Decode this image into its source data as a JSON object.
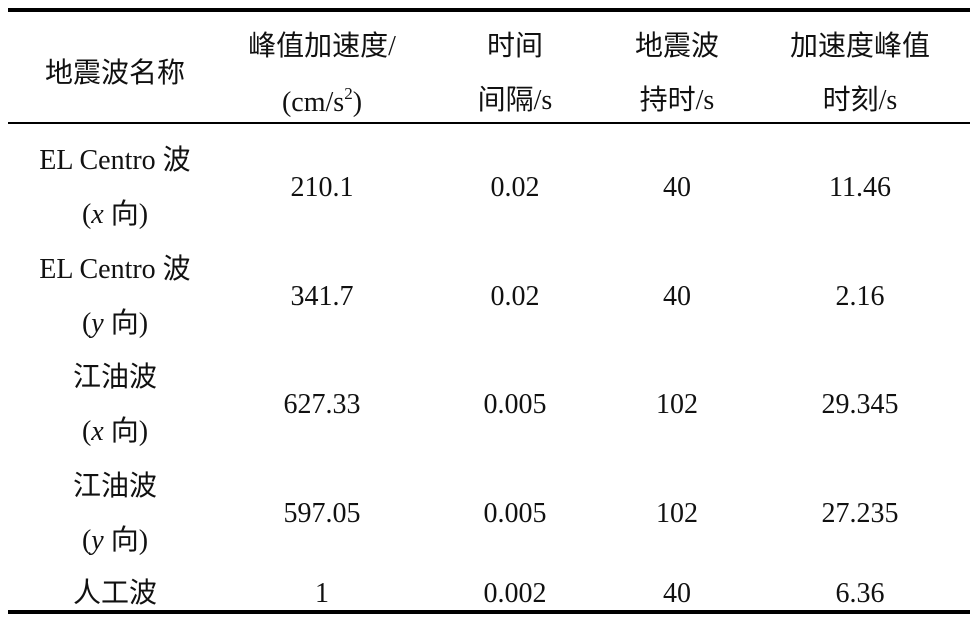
{
  "table": {
    "header": [
      [
        [
          "地震波名称"
        ]
      ],
      [
        [
          "峰值加速度/"
        ],
        [
          "(cm/s",
          "2",
          ")"
        ]
      ],
      [
        [
          "时间"
        ],
        [
          "间隔/s"
        ]
      ],
      [
        [
          "地震波"
        ],
        [
          "持时/s"
        ]
      ],
      [
        [
          "加速度峰值"
        ],
        [
          "时刻/s"
        ]
      ]
    ],
    "rows": [
      [
        [
          [
            "EL Centro 波"
          ],
          [
            "(",
            "x",
            " 向)"
          ]
        ],
        "210.1",
        "0.02",
        "40",
        "11.46"
      ],
      [
        [
          [
            "EL Centro 波"
          ],
          [
            "(",
            "y",
            " 向)"
          ]
        ],
        "341.7",
        "0.02",
        "40",
        "2.16"
      ],
      [
        [
          [
            "江油波"
          ],
          [
            "(",
            "x",
            " 向)"
          ]
        ],
        "627.33",
        "0.005",
        "102",
        "29.345"
      ],
      [
        [
          [
            "江油波"
          ],
          [
            "(",
            "y",
            " 向)"
          ]
        ],
        "597.05",
        "0.005",
        "102",
        "27.235"
      ],
      [
        [
          [
            "人工波"
          ]
        ],
        "1",
        "0.002",
        "40",
        "6.36"
      ]
    ]
  }
}
